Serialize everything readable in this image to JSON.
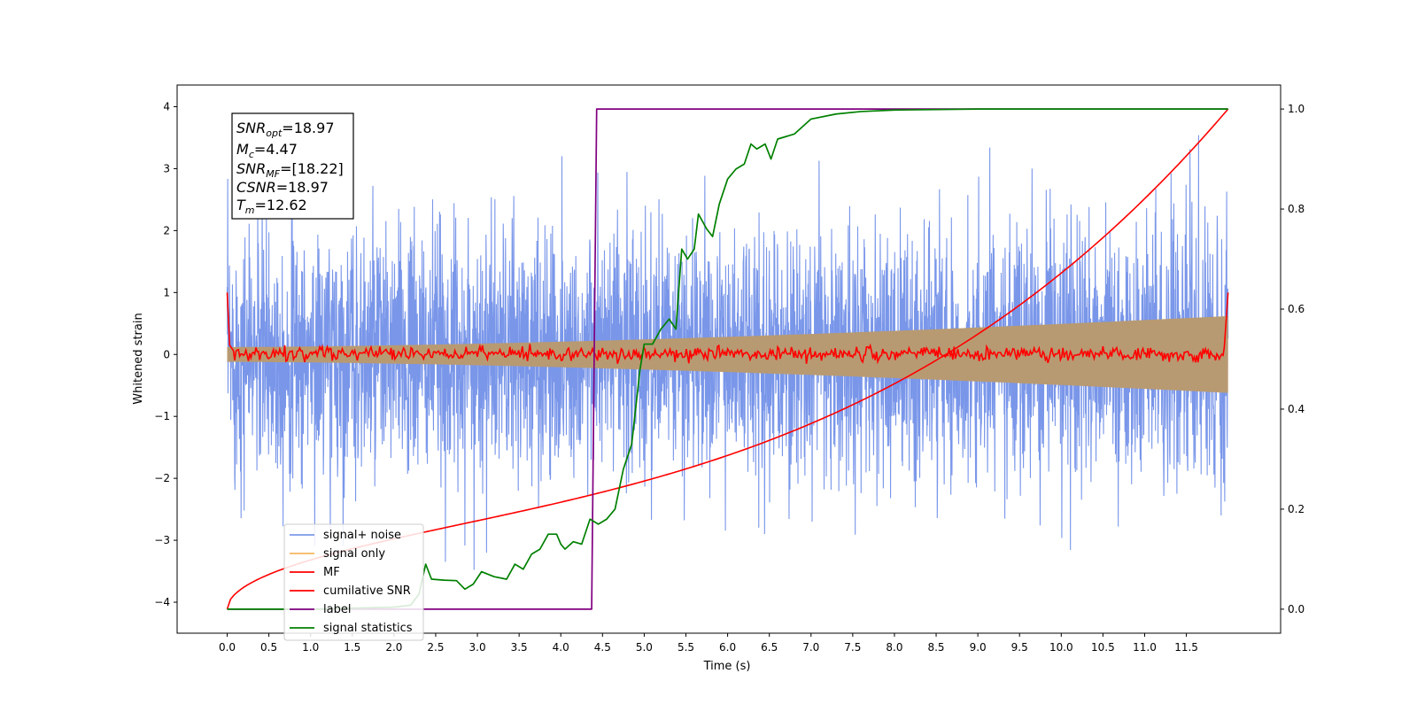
{
  "chart_data": {
    "type": "line",
    "title": "",
    "xlabel": "Time (s)",
    "ylabel": "Whitened strain",
    "xlim": [
      -0.6,
      12.63
    ],
    "ylim": [
      -4.5,
      4.35
    ],
    "y2lim": [
      -0.048,
      1.048
    ],
    "x_ticks": [
      "0.0",
      "0.5",
      "1.0",
      "1.5",
      "2.0",
      "2.5",
      "3.0",
      "3.5",
      "4.0",
      "4.5",
      "5.0",
      "5.5",
      "6.0",
      "6.5",
      "7.0",
      "7.5",
      "8.0",
      "8.5",
      "9.0",
      "9.5",
      "10.0",
      "10.5",
      "11.0",
      "11.5"
    ],
    "y_ticks": [
      "4",
      "3",
      "2",
      "1",
      "0",
      "−1",
      "−2",
      "−3",
      "−4"
    ],
    "y2_ticks": [
      "1.0",
      "0.8",
      "0.6",
      "0.4",
      "0.2",
      "0.0"
    ],
    "grid": false,
    "legend_position": "lower-left",
    "duration_s": 12.0,
    "annotation": {
      "snr_opt": {
        "sym": "SNR",
        "sub": "opt",
        "val": "=18.97"
      },
      "mc": {
        "sym": "M",
        "sub": "c",
        "val": "=4.47"
      },
      "snr_mf": {
        "sym": "SNR",
        "sub": "MF",
        "val": "=[18.22]"
      },
      "csnr": {
        "sym": "CSNR",
        "sub": "",
        "val": "=18.97"
      },
      "tm": {
        "sym": "T",
        "sub": "m",
        "val": "=12.62"
      }
    },
    "series": [
      {
        "name": "signal+ noise",
        "axis": "left",
        "color": "#6688e6",
        "kind": "noise",
        "noise_sd": 1.0
      },
      {
        "name": "signal only",
        "axis": "left",
        "color": "#f4b65e",
        "kind": "envelope",
        "amplitude_start": 0.12,
        "amplitude_end": 0.62
      },
      {
        "name": "MF",
        "axis": "left",
        "color": "#ff0000",
        "kind": "mf",
        "points": [
          [
            0.0,
            1.0
          ],
          [
            0.03,
            0.15
          ],
          [
            0.08,
            0.05
          ],
          [
            11.95,
            0.02
          ],
          [
            12.0,
            1.0
          ]
        ]
      },
      {
        "name": "cumilative SNR",
        "axis": "right",
        "color": "#ff0000",
        "kind": "sqrt_curve",
        "start": 0.0,
        "end": 1.0
      },
      {
        "name": "label",
        "axis": "right",
        "color": "#800080",
        "points": [
          [
            0.0,
            0.0
          ],
          [
            4.37,
            0.0
          ],
          [
            4.43,
            1.0
          ],
          [
            12.0,
            1.0
          ]
        ]
      },
      {
        "name": "signal statistics",
        "axis": "right",
        "color": "#008000",
        "points": [
          [
            0.0,
            0.0
          ],
          [
            0.5,
            0.0
          ],
          [
            1.0,
            0.0
          ],
          [
            1.5,
            0.002
          ],
          [
            2.0,
            0.004
          ],
          [
            2.2,
            0.008
          ],
          [
            2.3,
            0.03
          ],
          [
            2.38,
            0.09
          ],
          [
            2.45,
            0.06
          ],
          [
            2.6,
            0.058
          ],
          [
            2.75,
            0.057
          ],
          [
            2.85,
            0.04
          ],
          [
            2.95,
            0.05
          ],
          [
            3.05,
            0.075
          ],
          [
            3.2,
            0.065
          ],
          [
            3.35,
            0.06
          ],
          [
            3.45,
            0.09
          ],
          [
            3.55,
            0.08
          ],
          [
            3.65,
            0.11
          ],
          [
            3.75,
            0.12
          ],
          [
            3.85,
            0.15
          ],
          [
            3.95,
            0.15
          ],
          [
            4.0,
            0.13
          ],
          [
            4.05,
            0.12
          ],
          [
            4.15,
            0.135
          ],
          [
            4.25,
            0.13
          ],
          [
            4.35,
            0.18
          ],
          [
            4.45,
            0.17
          ],
          [
            4.55,
            0.18
          ],
          [
            4.65,
            0.2
          ],
          [
            4.75,
            0.28
          ],
          [
            4.85,
            0.33
          ],
          [
            4.95,
            0.48
          ],
          [
            5.0,
            0.53
          ],
          [
            5.1,
            0.53
          ],
          [
            5.2,
            0.56
          ],
          [
            5.3,
            0.58
          ],
          [
            5.38,
            0.56
          ],
          [
            5.45,
            0.72
          ],
          [
            5.52,
            0.7
          ],
          [
            5.6,
            0.72
          ],
          [
            5.65,
            0.79
          ],
          [
            5.75,
            0.76
          ],
          [
            5.82,
            0.745
          ],
          [
            5.9,
            0.81
          ],
          [
            6.0,
            0.86
          ],
          [
            6.1,
            0.88
          ],
          [
            6.2,
            0.89
          ],
          [
            6.28,
            0.93
          ],
          [
            6.35,
            0.92
          ],
          [
            6.45,
            0.93
          ],
          [
            6.52,
            0.9
          ],
          [
            6.6,
            0.94
          ],
          [
            6.8,
            0.95
          ],
          [
            7.0,
            0.98
          ],
          [
            7.3,
            0.99
          ],
          [
            7.6,
            0.995
          ],
          [
            8.0,
            0.998
          ],
          [
            9.0,
            1.0
          ],
          [
            12.0,
            1.0
          ]
        ]
      }
    ]
  }
}
